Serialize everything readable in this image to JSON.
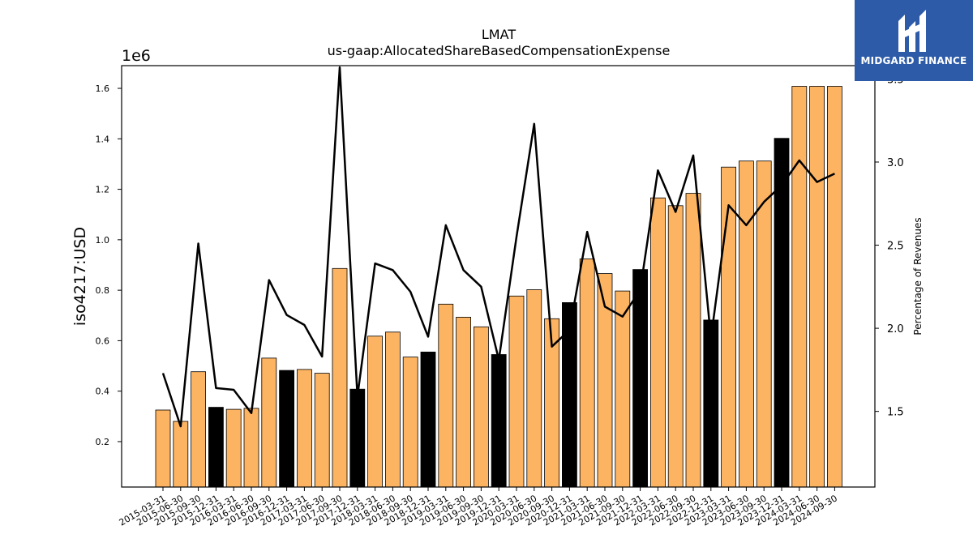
{
  "chart_data": {
    "type": "bar",
    "title": "LMAT",
    "subtitle": "us-gaap:AllocatedShareBasedCompensationExpense",
    "ylabel": "iso4217:USD",
    "y_multiplier_label": "1e6",
    "y2label": "Percentage of Revenues",
    "ylim": [
      0.02,
      1.69
    ],
    "y2lim": [
      1.045,
      3.58
    ],
    "yticks": [
      "0.2",
      "0.4",
      "0.6",
      "0.8",
      "1.0",
      "1.2",
      "1.4",
      "1.6"
    ],
    "y2ticks": [
      "1.5",
      "2.0",
      "2.5",
      "3.0",
      "3.5"
    ],
    "categories": [
      "2015-03-31",
      "2015-06-30",
      "2015-09-30",
      "2015-12-31",
      "2016-03-31",
      "2016-06-30",
      "2016-09-30",
      "2016-12-31",
      "2017-03-31",
      "2017-06-30",
      "2017-09-30",
      "2017-12-31",
      "2018-03-31",
      "2018-06-30",
      "2018-09-30",
      "2018-12-31",
      "2019-03-31",
      "2019-06-30",
      "2019-09-30",
      "2019-12-31",
      "2020-03-31",
      "2020-06-30",
      "2020-09-30",
      "2020-12-31",
      "2021-03-31",
      "2021-06-30",
      "2021-09-30",
      "2021-12-31",
      "2022-03-31",
      "2022-06-30",
      "2022-09-30",
      "2022-12-31",
      "2023-03-31",
      "2023-06-30",
      "2023-09-30",
      "2023-12-31",
      "2024-03-31",
      "2024-06-30",
      "2024-09-30"
    ],
    "series": [
      {
        "type": "bar",
        "values": [
          0.325,
          0.28,
          0.477,
          0.336,
          0.328,
          0.332,
          0.531,
          0.482,
          0.486,
          0.471,
          0.886,
          0.408,
          0.618,
          0.634,
          0.535,
          0.555,
          0.745,
          0.693,
          0.655,
          0.545,
          0.777,
          0.802,
          0.687,
          0.751,
          0.924,
          0.866,
          0.797,
          0.882,
          1.166,
          1.135,
          1.184,
          0.682,
          1.288,
          1.312,
          1.312,
          1.402,
          1.608,
          1.608,
          1.608
        ],
        "colors": [
          "#fdb462",
          "#fdb462",
          "#fdb462",
          "#000000",
          "#fdb462",
          "#fdb462",
          "#fdb462",
          "#000000",
          "#fdb462",
          "#fdb462",
          "#fdb462",
          "#000000",
          "#fdb462",
          "#fdb462",
          "#fdb462",
          "#000000",
          "#fdb462",
          "#fdb462",
          "#fdb462",
          "#000000",
          "#fdb462",
          "#fdb462",
          "#fdb462",
          "#000000",
          "#fdb462",
          "#fdb462",
          "#fdb462",
          "#000000",
          "#fdb462",
          "#fdb462",
          "#fdb462",
          "#000000",
          "#fdb462",
          "#fdb462",
          "#fdb462",
          "#000000",
          "#fdb462",
          "#fdb462",
          "#fdb462"
        ]
      },
      {
        "type": "line",
        "axis": "right",
        "color": "#000000",
        "values": [
          1.73,
          1.41,
          2.51,
          1.64,
          1.63,
          1.49,
          2.29,
          2.08,
          2.02,
          1.83,
          3.57,
          1.59,
          2.39,
          2.35,
          2.22,
          1.95,
          2.62,
          2.35,
          2.25,
          1.81,
          2.55,
          3.23,
          1.89,
          1.99,
          2.58,
          2.13,
          2.07,
          2.23,
          2.95,
          2.7,
          3.04,
          1.94,
          2.74,
          2.62,
          2.76,
          2.86,
          3.01,
          2.88,
          2.93
        ]
      }
    ],
    "grid": false,
    "legend": "none"
  },
  "logo": {
    "text": "MIDGARD FINANCE",
    "background": "#2d5ba8"
  }
}
